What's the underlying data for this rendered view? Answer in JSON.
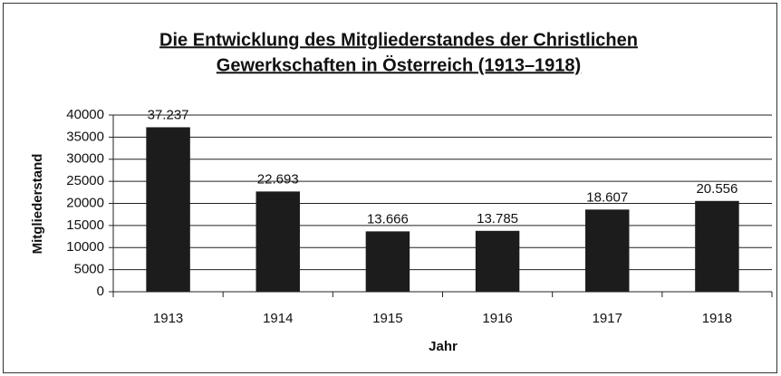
{
  "chart_data": {
    "type": "bar",
    "title": [
      "Die Entwicklung des Mitgliederstandes der Christlichen",
      "Gewerkschaften in Österreich (1913–1918)"
    ],
    "x_label": "Jahr",
    "y_label": "Mitgliederstand",
    "categories": [
      "1913",
      "1914",
      "1915",
      "1916",
      "1917",
      "1918"
    ],
    "values": [
      37237,
      22693,
      13666,
      13785,
      18607,
      20556
    ],
    "value_labels": [
      "37.237",
      "22.693",
      "13.666",
      "13.785",
      "18.607",
      "20.556"
    ],
    "color": "#1c1c1c",
    "ylim": [
      0,
      40000
    ],
    "yticks": [
      0,
      5000,
      10000,
      15000,
      20000,
      25000,
      30000,
      35000,
      40000
    ],
    "grid": true
  }
}
